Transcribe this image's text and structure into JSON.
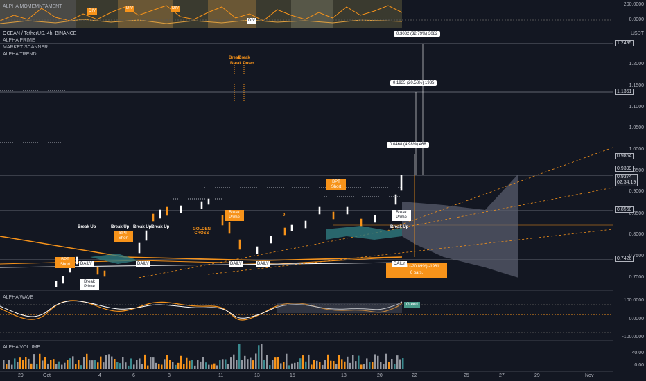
{
  "momentum": {
    "title": "ALPHA MOMEMNTAMENT",
    "axis": [
      "200.0000",
      "0.0000"
    ],
    "div_labels": [
      "DIV",
      "DIV",
      "DIV",
      "DIV"
    ]
  },
  "main": {
    "symbol": "OCEAN / TetherUS, 4h, BINANCE",
    "indicators": [
      "ALPHA PRIME",
      "MARKET SCANNER",
      "ALPHA TREND"
    ],
    "currency": "USDT",
    "axis_ticks": [
      "1.2000",
      "1.1500",
      "1.1000",
      "1.0500",
      "1.0000",
      "0.9500",
      "0.9000",
      "0.8500",
      "0.8000",
      "0.7500",
      "0.7000"
    ],
    "axis_tags": [
      "1.2495",
      "1.1351",
      "0.9864",
      "0.9399",
      "0.9374",
      "02:34:19",
      "0.8568",
      "0.7426"
    ],
    "measures": [
      "0.3082 (32.79%) 3082",
      "0.1935 (20.58%) 1935",
      "0.0468 (4.98%) 468"
    ],
    "info_box": [
      "-0.1961 (-20.89%) -1961",
      "6 bars,"
    ],
    "labels": {
      "break_up": "Break Up",
      "bpt_short": "BPT Short",
      "break_prime": "Break Prime",
      "golden_cross": "GOLDEN CROSS",
      "daily": "DAILY",
      "break": "Break",
      "breakdown": "Break Down",
      "nine": "9"
    }
  },
  "wave": {
    "title": "ALPHA WAVE",
    "axis": [
      "100.0000",
      "0.0000",
      "-100.0000"
    ],
    "greed": "Greed"
  },
  "volume": {
    "title": "ALPHA VOLUME",
    "axis": [
      "40.00",
      "0.00"
    ]
  },
  "time_axis": [
    "29",
    "Oct",
    "4",
    "6",
    "8",
    "11",
    "13",
    "15",
    "18",
    "20",
    "22",
    "25",
    "27",
    "29",
    "Nov"
  ],
  "colors": {
    "bg": "#131722",
    "orange": "#f7931a",
    "teal": "#3a8a8f",
    "green": "#26a69a",
    "red": "#ef5350"
  }
}
